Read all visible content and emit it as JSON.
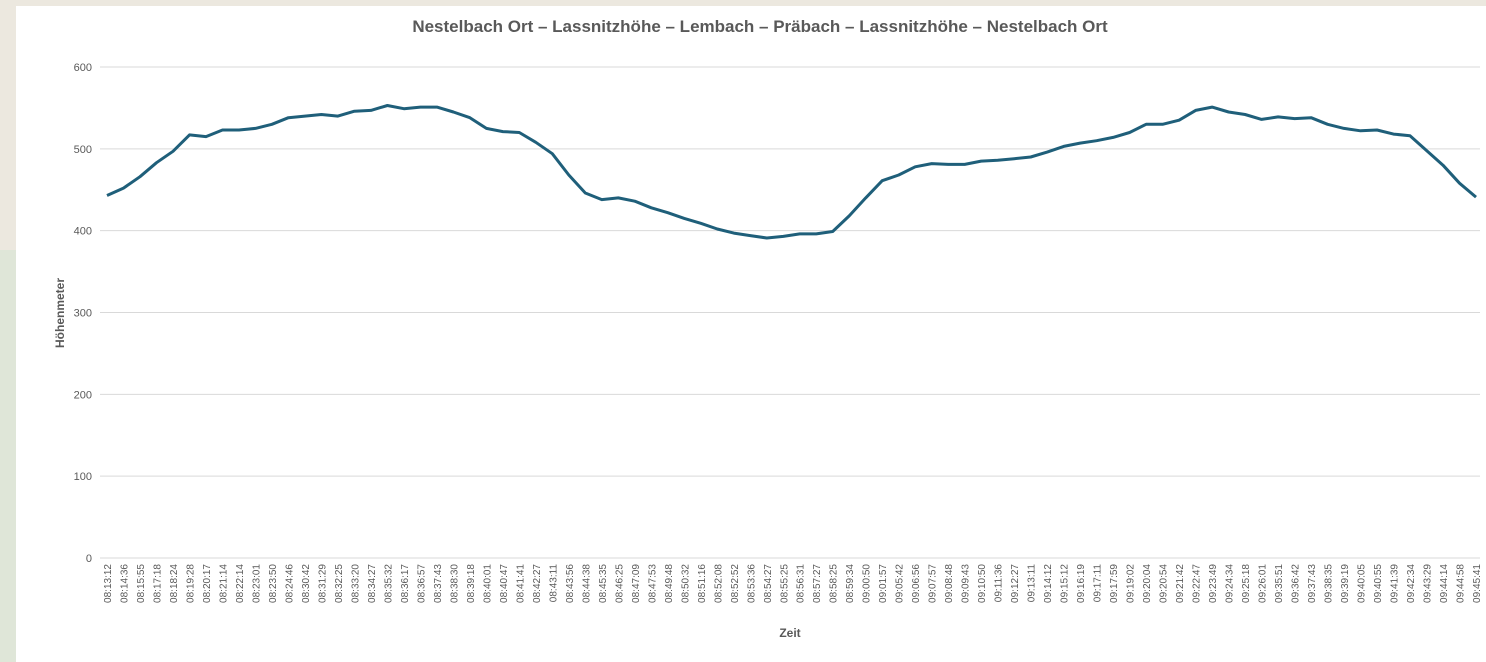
{
  "chart_data": {
    "type": "line",
    "title": "Nestelbach Ort – Lassnitzhöhe – Lembach – Präbach – Lassnitzhöhe – Nestelbach Ort",
    "x_label": "Zeit",
    "y_label": "Höhenmeter",
    "categories": [
      "08:13:12",
      "08:14:36",
      "08:15:55",
      "08:17:18",
      "08:18:24",
      "08:19:28",
      "08:20:17",
      "08:21:14",
      "08:22:14",
      "08:23:01",
      "08:23:50",
      "08:24:46",
      "08:30:42",
      "08:31:29",
      "08:32:25",
      "08:33:20",
      "08:34:27",
      "08:35:32",
      "08:36:17",
      "08:36:57",
      "08:37:43",
      "08:38:30",
      "08:39:18",
      "08:40:01",
      "08:40:47",
      "08:41:41",
      "08:42:27",
      "08:43:11",
      "08:43:56",
      "08:44:38",
      "08:45:35",
      "08:46:25",
      "08:47:09",
      "08:47:53",
      "08:49:48",
      "08:50:32",
      "08:51:16",
      "08:52:08",
      "08:52:52",
      "08:53:36",
      "08:54:27",
      "08:55:25",
      "08:56:31",
      "08:57:27",
      "08:58:25",
      "08:59:34",
      "09:00:50",
      "09:01:57",
      "09:05:42",
      "09:06:56",
      "09:07:57",
      "09:08:48",
      "09:09:43",
      "09:10:50",
      "09:11:36",
      "09:12:27",
      "09:13:11",
      "09:14:12",
      "09:15:12",
      "09:16:19",
      "09:17:11",
      "09:17:59",
      "09:19:02",
      "09:20:04",
      "09:20:54",
      "09:21:42",
      "09:22:47",
      "09:23:49",
      "09:24:34",
      "09:25:18",
      "09:26:01",
      "09:35:51",
      "09:36:42",
      "09:37:43",
      "09:38:35",
      "09:39:19",
      "09:40:05",
      "09:40:55",
      "09:41:39",
      "09:42:34",
      "09:43:29",
      "09:44:14",
      "09:44:58",
      "09:45:41"
    ],
    "values": [
      443,
      452,
      466,
      483,
      497,
      517,
      515,
      523,
      523,
      525,
      530,
      538,
      540,
      542,
      540,
      546,
      547,
      553,
      549,
      551,
      551,
      545,
      538,
      525,
      521,
      520,
      508,
      494,
      468,
      446,
      438,
      440,
      436,
      428,
      422,
      415,
      409,
      402,
      397,
      394,
      391,
      393,
      396,
      396,
      399,
      418,
      440,
      461,
      468,
      478,
      482,
      481,
      481,
      485,
      486,
      488,
      490,
      496,
      503,
      507,
      510,
      514,
      520,
      530,
      530,
      535,
      547,
      551,
      545,
      542,
      536,
      539,
      537,
      538,
      530,
      525,
      522,
      523,
      518,
      516,
      498,
      480,
      458,
      441
    ],
    "color": "#1f5f7a",
    "ylim": [
      0,
      600
    ],
    "yticks": [
      0,
      100,
      200,
      300,
      400,
      500,
      600
    ],
    "grid": true
  }
}
